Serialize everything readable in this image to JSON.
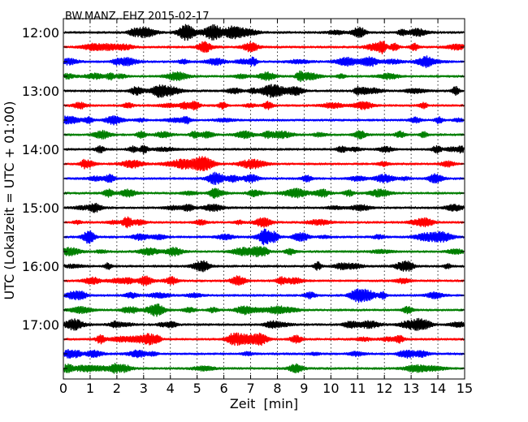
{
  "chart_data": {
    "type": "line",
    "title": "BW.MANZ..EHZ 2015-02-17",
    "xlabel": "Zeit  [min]",
    "ylabel": "UTC (Lokalzeit = UTC + 01:00)",
    "xlim": [
      0,
      15
    ],
    "x_ticks": [
      "0",
      "1",
      "2",
      "3",
      "4",
      "5",
      "6",
      "7",
      "8",
      "9",
      "10",
      "11",
      "12",
      "13",
      "14",
      "15"
    ],
    "y_tick_labels": [
      "12:00",
      "13:00",
      "14:00",
      "15:00",
      "16:00",
      "17:00"
    ],
    "grid": "vertical dotted at each minute",
    "trace_colors": [
      "#000000",
      "#ff0000",
      "#0000ff",
      "#007f00"
    ],
    "trace_start_times": [
      "12:00",
      "12:15",
      "12:30",
      "12:45",
      "13:00",
      "13:15",
      "13:30",
      "13:45",
      "14:00",
      "14:15",
      "14:30",
      "14:45",
      "15:00",
      "15:15",
      "15:30",
      "15:45",
      "16:00",
      "16:15",
      "16:30",
      "16:45",
      "17:00",
      "17:15",
      "17:30",
      "17:45"
    ],
    "trace_minutes_per_line": 15
  }
}
